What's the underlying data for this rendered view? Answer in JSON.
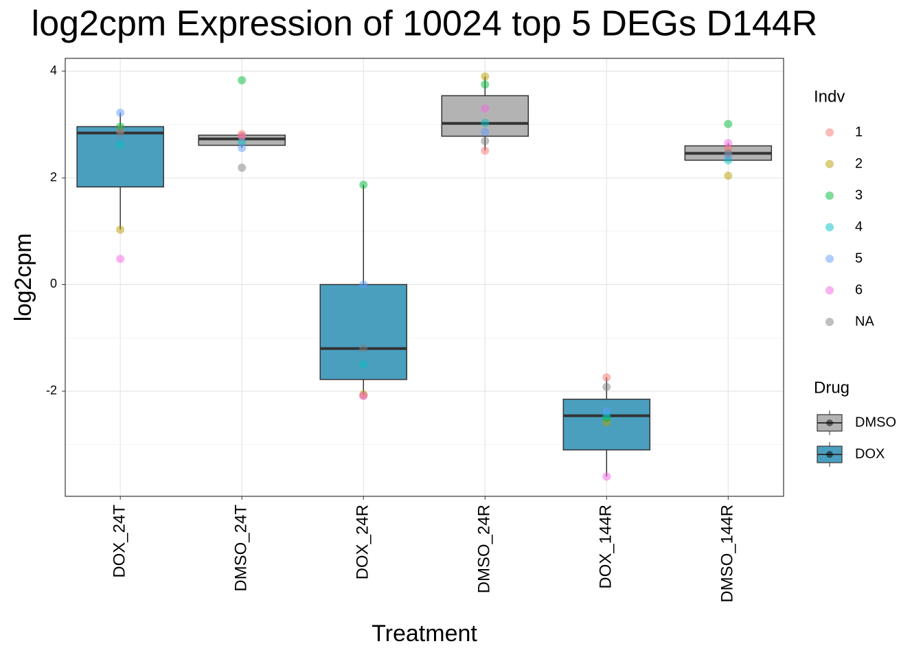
{
  "chart_data": {
    "type": "box",
    "title": "log2cpm Expression of 10024 top 5 DEGs D144R",
    "xlabel": "Treatment",
    "ylabel": "log2cpm",
    "categories": [
      "DOX_24T",
      "DMSO_24T",
      "DOX_24R",
      "DMSO_24R",
      "DOX_144R",
      "DMSO_144R"
    ],
    "ylim": [
      -3.97,
      4.24
    ],
    "yticks": [
      -2,
      0,
      2,
      4
    ],
    "minor_yticks": [
      -3,
      -1,
      1,
      3
    ],
    "grid": true,
    "box_colors": [
      "#4a9fbf",
      "#b3b3b3",
      "#4a9fbf",
      "#b3b3b3",
      "#4a9fbf",
      "#b3b3b3"
    ],
    "q1": [
      1.83,
      2.61,
      -1.78,
      2.78,
      -3.1,
      2.33
    ],
    "median": [
      2.84,
      2.73,
      -1.2,
      3.02,
      -2.46,
      2.46
    ],
    "q3": [
      2.96,
      2.8,
      0.0,
      3.54,
      -2.15,
      2.6
    ],
    "whisker_low": [
      1.03,
      2.56,
      -2.08,
      2.51,
      -3.6,
      2.33
    ],
    "whisker_high": [
      3.22,
      2.82,
      1.87,
      3.9,
      -1.74,
      2.65
    ],
    "points_legend_title": "Indv",
    "points": [
      {
        "name": "1",
        "color": "#F8766D",
        "values": [
          2.9,
          2.82,
          -2.08,
          2.51,
          -1.74,
          2.55
        ]
      },
      {
        "name": "2",
        "color": "#B79F00",
        "values": [
          1.03,
          2.78,
          -2.06,
          3.9,
          -2.58,
          2.04
        ]
      },
      {
        "name": "3",
        "color": "#00BA38",
        "values": [
          2.96,
          3.83,
          1.87,
          3.75,
          -2.5,
          3.01
        ]
      },
      {
        "name": "4",
        "color": "#00BFC4",
        "values": [
          2.62,
          2.68,
          -1.5,
          3.03,
          -2.45,
          2.33
        ]
      },
      {
        "name": "5",
        "color": "#619CFF",
        "values": [
          3.22,
          2.56,
          0.0,
          2.86,
          -2.38,
          2.42
        ]
      },
      {
        "name": "6",
        "color": "#F564E3",
        "values": [
          0.48,
          2.78,
          -2.09,
          3.3,
          -3.6,
          2.65
        ]
      },
      {
        "name": "NA",
        "color": "#7f7f7f",
        "values": [
          2.84,
          2.19,
          -1.2,
          2.69,
          -1.92,
          2.46
        ]
      }
    ],
    "drug_legend": {
      "title": "Drug",
      "items": [
        {
          "name": "DMSO",
          "color": "#b3b3b3"
        },
        {
          "name": "DOX",
          "color": "#4a9fbf"
        }
      ]
    }
  }
}
